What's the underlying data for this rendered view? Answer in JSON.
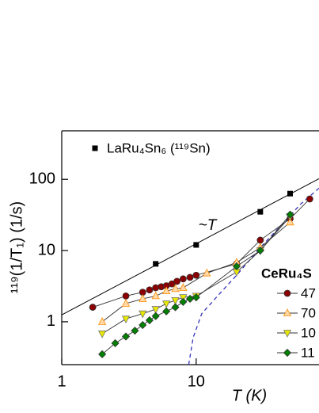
{
  "chart_data": {
    "type": "line",
    "y_label": "¹¹⁹(1/T₁) (1/s)",
    "x_label": "T (K)",
    "annotation": "~T",
    "legend_title": "CeRu₄S",
    "log_x": true,
    "log_y": true,
    "xlim": [
      1,
      82
    ],
    "ylim": [
      0.25,
      480
    ],
    "xticks": [
      1,
      10
    ],
    "yticks": [
      1,
      10,
      100
    ],
    "fit_line": {
      "x": [
        1,
        82
      ],
      "values": [
        1.25,
        102
      ],
      "color": "#000000"
    },
    "dashed_curve": {
      "x": [
        8.8,
        9.5,
        11,
        15,
        20,
        30,
        45,
        60,
        82
      ],
      "values": [
        0.25,
        0.6,
        1.3,
        2.5,
        4.5,
        11,
        25,
        45,
        75
      ],
      "color": "#3333bb"
    },
    "series": [
      {
        "name": "LaRu₄Sn₆ (¹¹⁹Sn)",
        "marker": "square",
        "color": "#000000",
        "connect": false,
        "x": [
          5,
          10,
          30,
          50
        ],
        "values": [
          6.5,
          12,
          35,
          63
        ]
      },
      {
        "name": "47",
        "marker": "circle",
        "color": "#8b0000",
        "connect": true,
        "x": [
          1.7,
          3,
          4,
          4.5,
          5,
          5.5,
          6,
          6.6,
          7.2,
          8,
          9,
          10,
          20,
          30,
          50,
          70
        ],
        "values": [
          1.6,
          2.3,
          2.6,
          2.8,
          3.0,
          3.1,
          3.2,
          3.4,
          3.7,
          4.0,
          4.2,
          4.5,
          6.5,
          14,
          28,
          53
        ]
      },
      {
        "name": "70",
        "marker": "triangle-up",
        "color": "#ff8c00",
        "connect": true,
        "x": [
          2,
          3,
          4,
          5,
          6,
          7,
          8,
          12,
          20,
          30,
          50
        ],
        "values": [
          1.0,
          1.8,
          2.1,
          2.3,
          2.7,
          2.9,
          3.0,
          4.8,
          6.8,
          11,
          25
        ]
      },
      {
        "name": "10",
        "marker": "triangle-down",
        "color": "#e6e600",
        "connect": true,
        "x": [
          2,
          3,
          4,
          5,
          6,
          7,
          8,
          10,
          20,
          30,
          50
        ],
        "values": [
          0.68,
          1.1,
          1.3,
          1.5,
          1.8,
          2.0,
          2.2,
          2.3,
          5,
          10,
          30
        ]
      },
      {
        "name": "11",
        "marker": "diamond",
        "color": "#008000",
        "connect": true,
        "x": [
          2,
          2.5,
          3,
          3.5,
          4,
          4.5,
          5,
          6,
          7,
          8,
          9,
          10,
          20,
          30,
          50
        ],
        "values": [
          0.35,
          0.5,
          0.62,
          0.75,
          0.9,
          1.05,
          1.2,
          1.4,
          1.6,
          1.9,
          2.1,
          2.2,
          6,
          10,
          32
        ]
      }
    ]
  }
}
